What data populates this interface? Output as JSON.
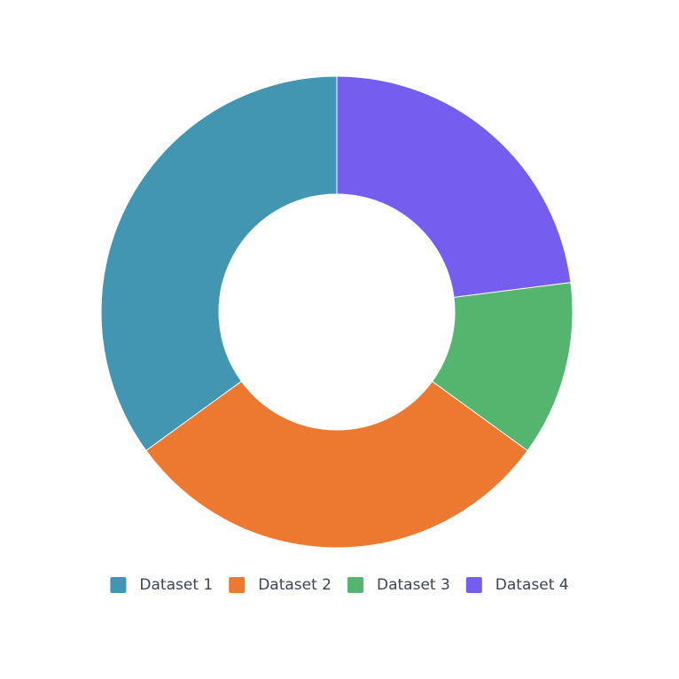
{
  "chart_data": {
    "type": "doughnut",
    "categories": [
      "Dataset 1",
      "Dataset 2",
      "Dataset 3",
      "Dataset 4"
    ],
    "values": [
      35,
      30,
      12,
      23
    ],
    "colors": [
      "#4396b1",
      "#ed7830",
      "#54b56e",
      "#755df0"
    ],
    "legend": "bottom"
  }
}
